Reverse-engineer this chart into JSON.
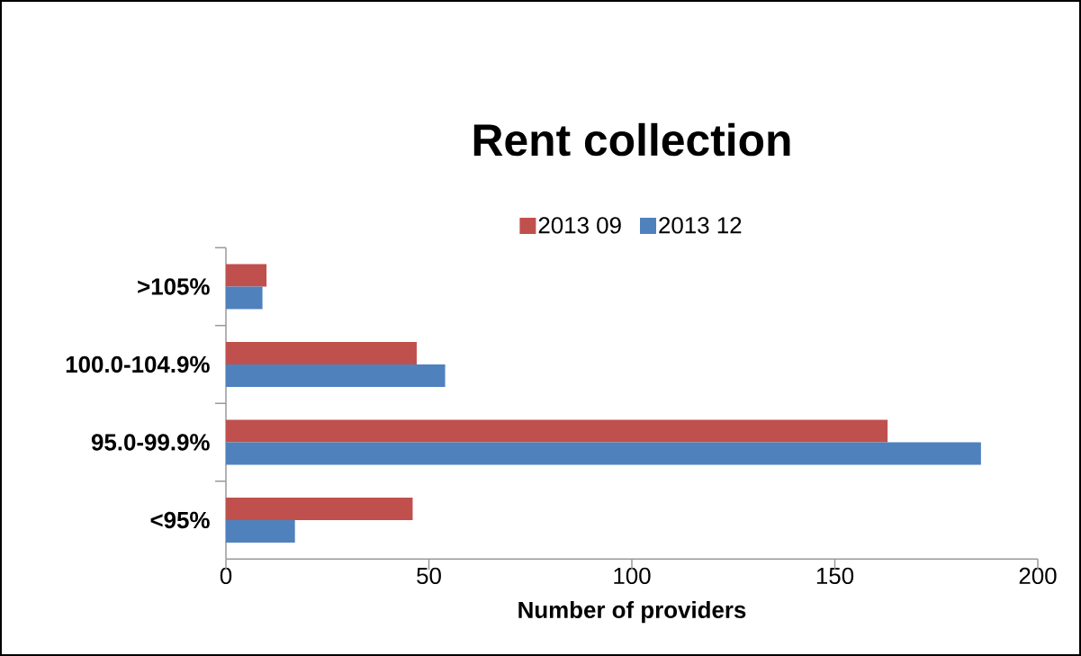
{
  "chart_data": {
    "type": "bar",
    "orientation": "horizontal",
    "title": "Rent collection",
    "xlabel": "Number of providers",
    "categories": [
      ">105%",
      "100.0-104.9%",
      "95.0-99.9%",
      "<95%"
    ],
    "series": [
      {
        "name": "2013 09",
        "color": "#c0504d",
        "values": [
          10,
          47,
          163,
          46
        ]
      },
      {
        "name": "2013 12",
        "color": "#4f81bd",
        "values": [
          9,
          54,
          186,
          17
        ]
      }
    ],
    "xlim": [
      0,
      200
    ],
    "xticks": [
      0,
      50,
      100,
      150,
      200
    ],
    "grid": false,
    "legend": "top"
  }
}
